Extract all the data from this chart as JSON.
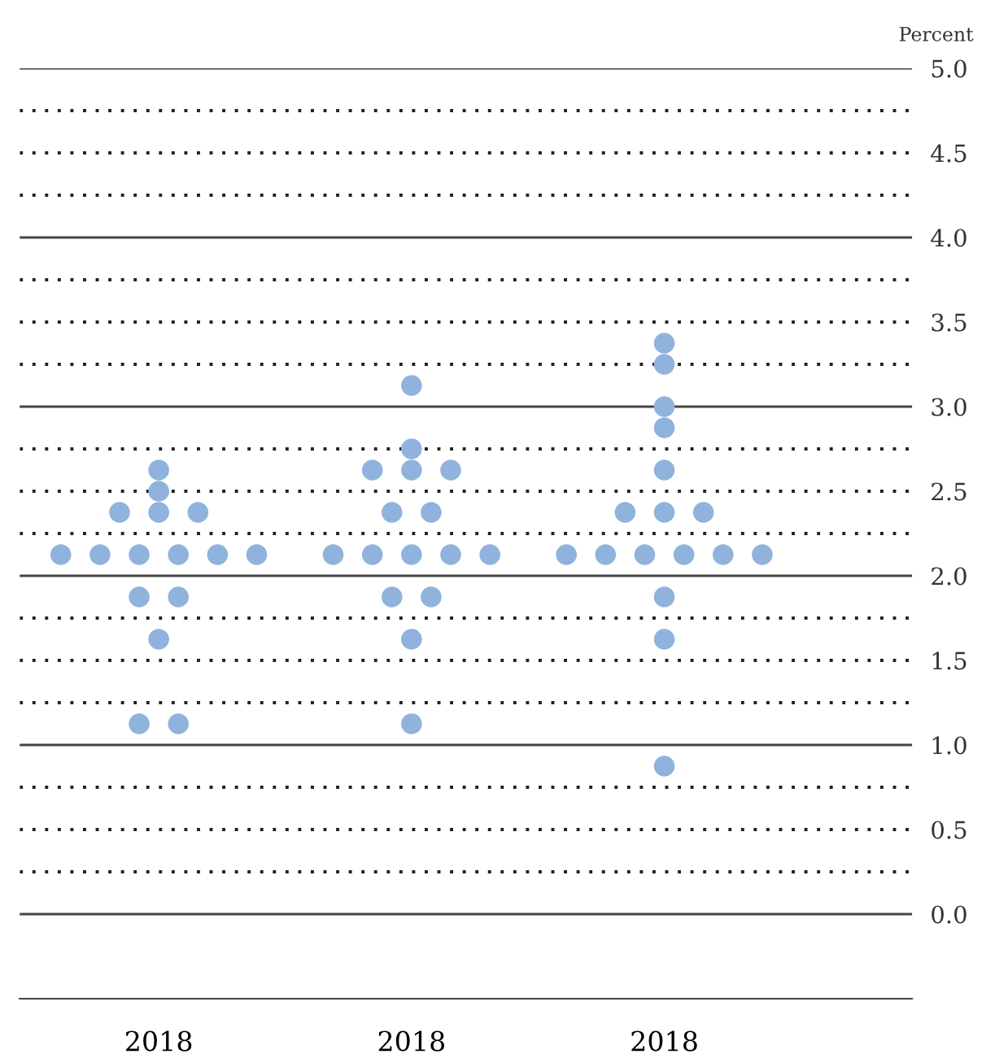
{
  "chart_data": {
    "type": "scatter",
    "ylabel": "Percent",
    "categories": [
      "2018",
      "2018",
      "2018"
    ],
    "series": [
      {
        "color": "#8fb3dc",
        "values": [
          2.625,
          3.125,
          3.375
        ]
      },
      {
        "color": "#8fb3dc",
        "values": [
          2.5,
          2.75,
          3.25
        ]
      },
      {
        "color": "#8fb3dc",
        "values": [
          2.375,
          2.625,
          3.0
        ]
      },
      {
        "color": "#8fb3dc",
        "values": [
          2.375,
          2.625,
          2.875
        ]
      },
      {
        "color": "#8fb3dc",
        "values": [
          2.375,
          2.625,
          2.625
        ]
      },
      {
        "color": "#8fb3dc",
        "values": [
          2.125,
          2.375,
          2.375
        ]
      },
      {
        "color": "#8fb3dc",
        "values": [
          2.125,
          2.375,
          2.375
        ]
      },
      {
        "color": "#8fb3dc",
        "values": [
          2.125,
          2.125,
          2.375
        ]
      },
      {
        "color": "#8fb3dc",
        "values": [
          2.125,
          2.125,
          2.125
        ]
      },
      {
        "color": "#8fb3dc",
        "values": [
          2.125,
          2.125,
          2.125
        ]
      },
      {
        "color": "#8fb3dc",
        "values": [
          2.125,
          2.125,
          2.125
        ]
      },
      {
        "color": "#8fb3dc",
        "values": [
          1.875,
          2.125,
          2.125
        ]
      },
      {
        "color": "#8fb3dc",
        "values": [
          1.875,
          1.875,
          2.125
        ]
      },
      {
        "color": "#8fb3dc",
        "values": [
          1.625,
          1.875,
          2.125
        ]
      },
      {
        "color": "#8fb3dc",
        "values": [
          1.125,
          1.625,
          1.875
        ]
      },
      {
        "color": "#8fb3dc",
        "values": [
          1.125,
          1.125,
          1.625
        ]
      },
      {
        "color": "#8fb3dc",
        "values": [
          null,
          null,
          0.875
        ]
      }
    ],
    "ylim": [
      -0.5,
      5.0
    ],
    "yticks": [
      {
        "value": 0,
        "label": "0.0"
      },
      {
        "value": 0.25,
        "label": null
      },
      0.5,
      {
        "value": 0.75,
        "label": null
      },
      {
        "value": 1,
        "label": "1.0"
      },
      {
        "value": 1.25,
        "label": null
      },
      1.5,
      {
        "value": 1.75,
        "label": null
      },
      {
        "value": 2,
        "label": "2.0"
      },
      {
        "value": 2.25,
        "label": null
      },
      2.5,
      {
        "value": 2.75,
        "label": null
      },
      {
        "value": 3,
        "label": "3.0"
      },
      {
        "value": 3.25,
        "label": null
      },
      3.5,
      {
        "value": 3.75,
        "label": null
      },
      {
        "value": 4,
        "label": "4.0"
      },
      {
        "value": 4.25,
        "label": null
      },
      4.5,
      {
        "value": 4.75,
        "label": null
      },
      {
        "value": 5,
        "label": "5.0"
      }
    ],
    "grid": "y",
    "marker": "circle"
  }
}
